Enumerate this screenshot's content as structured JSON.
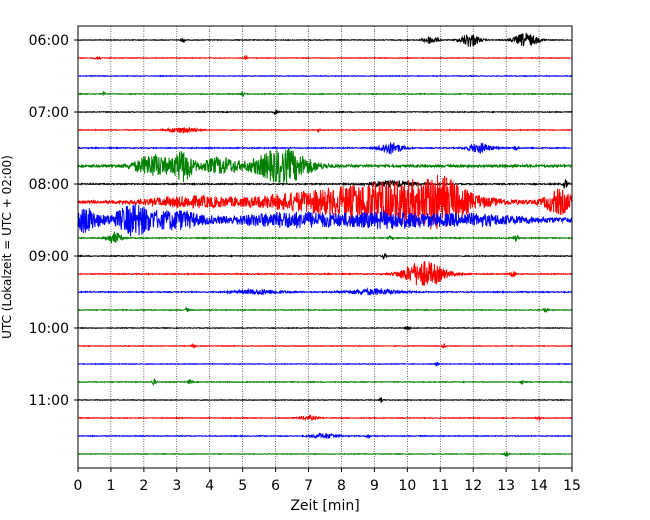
{
  "chart_data": {
    "type": "line",
    "title": "",
    "xlabel": "Zeit  [min]",
    "ylabel": "UTC (Lokalzeit = UTC + 02:00)",
    "xlim": [
      0,
      15
    ],
    "x_ticks": [
      "0",
      "1",
      "2",
      "3",
      "4",
      "5",
      "6",
      "7",
      "8",
      "9",
      "10",
      "11",
      "12",
      "13",
      "14",
      "15"
    ],
    "y_ticks": [
      "06:00",
      "07:00",
      "08:00",
      "09:00",
      "10:00",
      "11:00"
    ],
    "grid": "vertical dotted at each minute",
    "trace_interval_minutes": 15,
    "colors": [
      "#000000",
      "#ff0000",
      "#0000ff",
      "#008000"
    ],
    "traces": [
      {
        "time": "06:00",
        "color": "#000000",
        "noise": 0.35,
        "events": [
          {
            "t": 10.7,
            "amp": 4,
            "w": 0.15
          },
          {
            "t": 11.9,
            "amp": 7,
            "w": 0.2
          },
          {
            "t": 13.6,
            "amp": 7,
            "w": 0.25
          },
          {
            "t": 3.2,
            "amp": 2.5,
            "w": 0.05
          }
        ]
      },
      {
        "time": "06:15",
        "color": "#ff0000",
        "noise": 0.35,
        "events": [
          {
            "t": 0.6,
            "amp": 2.5,
            "w": 0.06
          },
          {
            "t": 5.1,
            "amp": 3,
            "w": 0.03
          }
        ]
      },
      {
        "time": "06:30",
        "color": "#0000ff",
        "noise": 0.35,
        "events": []
      },
      {
        "time": "06:45",
        "color": "#008000",
        "noise": 0.4,
        "events": [
          {
            "t": 0.8,
            "amp": 2.5,
            "w": 0.03
          },
          {
            "t": 5.0,
            "amp": 2.5,
            "w": 0.03
          }
        ]
      },
      {
        "time": "07:00",
        "color": "#000000",
        "noise": 0.4,
        "events": [
          {
            "t": 6.0,
            "amp": 2,
            "w": 0.05
          }
        ]
      },
      {
        "time": "07:15",
        "color": "#ff0000",
        "noise": 0.4,
        "events": [
          {
            "t": 3.2,
            "amp": 3,
            "w": 0.3
          },
          {
            "t": 7.3,
            "amp": 2,
            "w": 0.03
          }
        ]
      },
      {
        "time": "07:30",
        "color": "#0000ff",
        "noise": 0.5,
        "events": [
          {
            "t": 9.5,
            "amp": 6,
            "w": 0.25
          },
          {
            "t": 12.2,
            "amp": 5,
            "w": 0.25
          },
          {
            "t": 13.3,
            "amp": 2.5,
            "w": 0.05
          }
        ]
      },
      {
        "time": "07:45",
        "color": "#008000",
        "noise": 1.2,
        "events": [
          {
            "t": 2.3,
            "amp": 11,
            "w": 0.4
          },
          {
            "t": 3.2,
            "amp": 15,
            "w": 0.2
          },
          {
            "t": 4.3,
            "amp": 8,
            "w": 0.4
          },
          {
            "t": 6.2,
            "amp": 17,
            "w": 0.6
          }
        ]
      },
      {
        "time": "08:00",
        "color": "#000000",
        "noise": 0.6,
        "events": [
          {
            "t": 9.5,
            "amp": 3,
            "w": 0.5
          },
          {
            "t": 14.8,
            "amp": 5,
            "w": 0.05
          }
        ]
      },
      {
        "time": "08:15",
        "color": "#ff0000",
        "noise": 1.4,
        "events": [
          {
            "t": 3.5,
            "amp": 5,
            "w": 1.0
          },
          {
            "t": 6.5,
            "amp": 5,
            "w": 1.0
          },
          {
            "t": 9.5,
            "amp": 20,
            "w": 1.6
          },
          {
            "t": 11.0,
            "amp": 14,
            "w": 0.5
          },
          {
            "t": 14.6,
            "amp": 12,
            "w": 0.3
          }
        ]
      },
      {
        "time": "08:30",
        "color": "#0000ff",
        "noise": 2.6,
        "events": [
          {
            "t": 0.2,
            "amp": 11,
            "w": 0.3
          },
          {
            "t": 1.7,
            "amp": 14,
            "w": 0.4
          },
          {
            "t": 3.0,
            "amp": 8,
            "w": 0.5
          },
          {
            "t": 6.5,
            "amp": 6,
            "w": 1.2
          },
          {
            "t": 9.5,
            "amp": 6,
            "w": 1.0
          },
          {
            "t": 12.0,
            "amp": 4,
            "w": 1.0
          }
        ]
      },
      {
        "time": "08:45",
        "color": "#008000",
        "noise": 0.5,
        "events": [
          {
            "t": 1.1,
            "amp": 6,
            "w": 0.15
          },
          {
            "t": 9.5,
            "amp": 2,
            "w": 0.05
          },
          {
            "t": 13.3,
            "amp": 2.5,
            "w": 0.05
          }
        ]
      },
      {
        "time": "09:00",
        "color": "#000000",
        "noise": 0.45,
        "events": [
          {
            "t": 9.3,
            "amp": 2.5,
            "w": 0.05
          }
        ]
      },
      {
        "time": "09:15",
        "color": "#ff0000",
        "noise": 0.5,
        "events": [
          {
            "t": 10.5,
            "amp": 13,
            "w": 0.45
          },
          {
            "t": 13.2,
            "amp": 3,
            "w": 0.05
          }
        ]
      },
      {
        "time": "09:30",
        "color": "#0000ff",
        "noise": 0.5,
        "events": [
          {
            "t": 5.5,
            "amp": 2.5,
            "w": 0.5
          },
          {
            "t": 9.0,
            "amp": 3,
            "w": 0.6
          }
        ]
      },
      {
        "time": "09:45",
        "color": "#008000",
        "noise": 0.4,
        "events": [
          {
            "t": 3.3,
            "amp": 2,
            "w": 0.04
          },
          {
            "t": 14.2,
            "amp": 2.5,
            "w": 0.05
          }
        ]
      },
      {
        "time": "10:00",
        "color": "#000000",
        "noise": 0.35,
        "events": [
          {
            "t": 10.0,
            "amp": 2.5,
            "w": 0.04
          }
        ]
      },
      {
        "time": "10:15",
        "color": "#ff0000",
        "noise": 0.35,
        "events": [
          {
            "t": 3.5,
            "amp": 2,
            "w": 0.04
          },
          {
            "t": 11.1,
            "amp": 2,
            "w": 0.04
          }
        ]
      },
      {
        "time": "10:30",
        "color": "#0000ff",
        "noise": 0.35,
        "events": [
          {
            "t": 10.9,
            "amp": 2,
            "w": 0.04
          }
        ]
      },
      {
        "time": "10:45",
        "color": "#008000",
        "noise": 0.4,
        "events": [
          {
            "t": 2.3,
            "amp": 4,
            "w": 0.04
          },
          {
            "t": 3.4,
            "amp": 2.5,
            "w": 0.04
          },
          {
            "t": 13.5,
            "amp": 2,
            "w": 0.04
          }
        ]
      },
      {
        "time": "11:00",
        "color": "#000000",
        "noise": 0.35,
        "events": [
          {
            "t": 9.2,
            "amp": 2.5,
            "w": 0.04
          }
        ]
      },
      {
        "time": "11:15",
        "color": "#ff0000",
        "noise": 0.4,
        "events": [
          {
            "t": 7.0,
            "amp": 2,
            "w": 0.2
          },
          {
            "t": 14.0,
            "amp": 2,
            "w": 0.05
          }
        ]
      },
      {
        "time": "11:30",
        "color": "#0000ff",
        "noise": 0.4,
        "events": [
          {
            "t": 7.5,
            "amp": 2.5,
            "w": 0.3
          },
          {
            "t": 8.8,
            "amp": 2.5,
            "w": 0.04
          }
        ]
      },
      {
        "time": "11:45",
        "color": "#008000",
        "noise": 0.35,
        "events": [
          {
            "t": 13.0,
            "amp": 2,
            "w": 0.05
          }
        ]
      }
    ]
  }
}
